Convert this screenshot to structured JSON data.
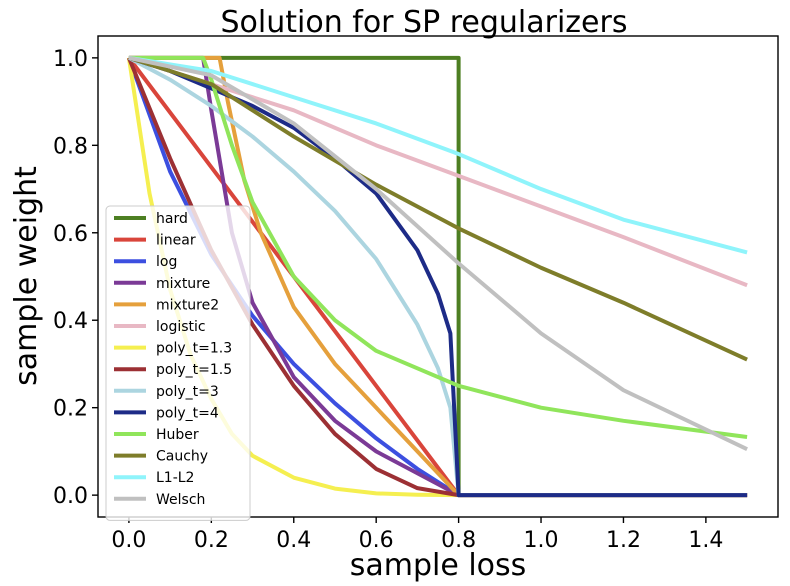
{
  "chart_data": {
    "type": "line",
    "title": "Solution for SP regularizers",
    "xlabel": "sample loss",
    "ylabel": "sample weight",
    "xlim": [
      -0.075,
      1.575
    ],
    "ylim": [
      -0.05,
      1.05
    ],
    "xticks": [
      0.0,
      0.2,
      0.4,
      0.6,
      0.8,
      1.0,
      1.2,
      1.4
    ],
    "xtick_labels": [
      "0.0",
      "0.2",
      "0.4",
      "0.6",
      "0.8",
      "1.0",
      "1.2",
      "1.4"
    ],
    "yticks": [
      0.0,
      0.2,
      0.4,
      0.6,
      0.8,
      1.0
    ],
    "ytick_labels": [
      "0.0",
      "0.2",
      "0.4",
      "0.6",
      "0.8",
      "1.0"
    ],
    "grid": false,
    "legend_position": "lower-left",
    "series": [
      {
        "name": "hard",
        "color": "#4d7f22",
        "x": [
          0,
          0.8,
          0.8,
          1.5
        ],
        "y": [
          1,
          1,
          0,
          0
        ]
      },
      {
        "name": "linear",
        "color": "#d9453b",
        "x": [
          0,
          0.2,
          0.4,
          0.6,
          0.8,
          1.5
        ],
        "y": [
          1,
          0.75,
          0.5,
          0.25,
          0,
          0
        ]
      },
      {
        "name": "log",
        "color": "#3c4fe0",
        "x": [
          0,
          0.1,
          0.2,
          0.3,
          0.4,
          0.5,
          0.6,
          0.7,
          0.8,
          1.5
        ],
        "y": [
          1,
          0.74,
          0.55,
          0.41,
          0.3,
          0.21,
          0.13,
          0.06,
          0,
          0
        ]
      },
      {
        "name": "mixture",
        "color": "#7b3a96",
        "x": [
          0,
          0.18,
          0.2,
          0.25,
          0.3,
          0.4,
          0.5,
          0.6,
          0.7,
          0.8,
          1.5
        ],
        "y": [
          1,
          1,
          0.88,
          0.6,
          0.44,
          0.27,
          0.17,
          0.1,
          0.05,
          0,
          0
        ]
      },
      {
        "name": "mixture2",
        "color": "#e5a03c",
        "x": [
          0,
          0.22,
          0.24,
          0.28,
          0.32,
          0.4,
          0.5,
          0.6,
          0.7,
          0.8,
          1.5
        ],
        "y": [
          1,
          1,
          0.9,
          0.72,
          0.6,
          0.43,
          0.3,
          0.2,
          0.1,
          0,
          0
        ]
      },
      {
        "name": "logistic",
        "color": "#e8b8c4",
        "x": [
          0,
          0.2,
          0.4,
          0.6,
          0.8,
          1.0,
          1.2,
          1.5
        ],
        "y": [
          1,
          0.94,
          0.88,
          0.8,
          0.73,
          0.66,
          0.59,
          0.48
        ]
      },
      {
        "name": "poly_t=1.3",
        "color": "#f5ef50",
        "x": [
          0,
          0.05,
          0.1,
          0.15,
          0.2,
          0.25,
          0.3,
          0.4,
          0.5,
          0.6,
          0.7,
          0.8,
          1.5
        ],
        "y": [
          1,
          0.69,
          0.47,
          0.32,
          0.22,
          0.14,
          0.09,
          0.04,
          0.015,
          0.004,
          0.001,
          0,
          0
        ]
      },
      {
        "name": "poly_t=1.5",
        "color": "#9c3034",
        "x": [
          0,
          0.1,
          0.2,
          0.3,
          0.4,
          0.5,
          0.6,
          0.7,
          0.8,
          1.5
        ],
        "y": [
          1,
          0.77,
          0.56,
          0.39,
          0.25,
          0.14,
          0.06,
          0.016,
          0,
          0
        ]
      },
      {
        "name": "poly_t=3",
        "color": "#acd5e0",
        "x": [
          0,
          0.1,
          0.2,
          0.3,
          0.4,
          0.5,
          0.6,
          0.7,
          0.75,
          0.78,
          0.8,
          1.5
        ],
        "y": [
          1,
          0.95,
          0.89,
          0.82,
          0.74,
          0.65,
          0.54,
          0.39,
          0.29,
          0.2,
          0,
          0
        ]
      },
      {
        "name": "poly_t=4",
        "color": "#1d2b87",
        "x": [
          0,
          0.1,
          0.2,
          0.3,
          0.4,
          0.5,
          0.6,
          0.7,
          0.75,
          0.78,
          0.8,
          1.5
        ],
        "y": [
          1,
          0.97,
          0.93,
          0.89,
          0.84,
          0.77,
          0.69,
          0.56,
          0.46,
          0.37,
          0,
          0
        ]
      },
      {
        "name": "Huber",
        "color": "#90e55b",
        "x": [
          0,
          0.18,
          0.2,
          0.25,
          0.3,
          0.4,
          0.5,
          0.6,
          0.8,
          1.0,
          1.2,
          1.5
        ],
        "y": [
          1,
          1,
          0.95,
          0.8,
          0.67,
          0.5,
          0.4,
          0.33,
          0.25,
          0.2,
          0.17,
          0.133
        ]
      },
      {
        "name": "Cauchy",
        "color": "#7e7d2a",
        "x": [
          0,
          0.2,
          0.4,
          0.6,
          0.8,
          1.0,
          1.2,
          1.5
        ],
        "y": [
          1,
          0.94,
          0.82,
          0.71,
          0.61,
          0.52,
          0.44,
          0.31
        ]
      },
      {
        "name": "L1-L2",
        "color": "#8ff4fb",
        "x": [
          0,
          0.2,
          0.4,
          0.6,
          0.8,
          1.0,
          1.2,
          1.5
        ],
        "y": [
          1,
          0.97,
          0.91,
          0.85,
          0.78,
          0.7,
          0.63,
          0.555
        ]
      },
      {
        "name": "Welsch",
        "color": "#c0c0c0",
        "x": [
          0,
          0.2,
          0.4,
          0.6,
          0.8,
          1.0,
          1.2,
          1.5
        ],
        "y": [
          1,
          0.96,
          0.85,
          0.7,
          0.53,
          0.37,
          0.24,
          0.105
        ]
      }
    ]
  }
}
